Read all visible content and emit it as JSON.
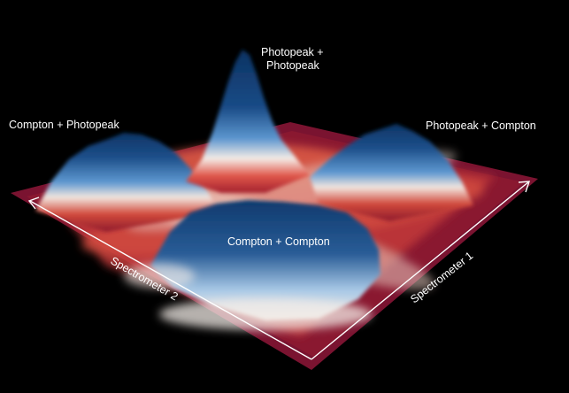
{
  "labels": {
    "peak_pp_line1": "Photopeak +",
    "peak_pp_line2": "Photopeak",
    "peak_cp": "Compton + Photopeak",
    "peak_pc": "Photopeak + Compton",
    "peak_cc": "Compton + Compton"
  },
  "axes": {
    "x_label": "Spectrometer 1",
    "y_label": "Spectrometer 2"
  },
  "colors": {
    "background": "#000000",
    "floor": "#7a1330",
    "low": "#8e1a2c",
    "mid_red": "#d94a3a",
    "white": "#f3eee8",
    "light_blue": "#6ea6d8",
    "dark_blue": "#0f3a6e",
    "axis_line": "#ffffff"
  }
}
